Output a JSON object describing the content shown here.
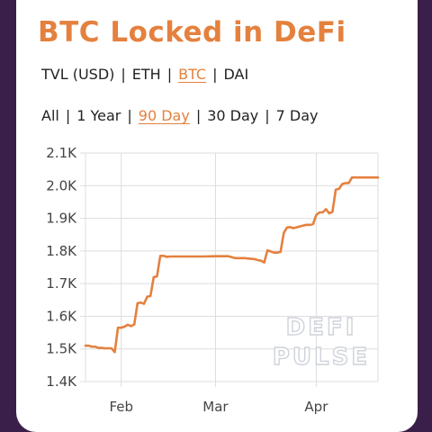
{
  "title": "BTC Locked in DeFi",
  "units": {
    "options": [
      "TVL (USD)",
      "ETH",
      "BTC",
      "DAI"
    ],
    "active": "BTC"
  },
  "ranges": {
    "options": [
      "All",
      "1 Year",
      "90 Day",
      "30 Day",
      "7 Day"
    ],
    "active": "90 Day"
  },
  "watermark": {
    "line1": "DEFI",
    "line2": "PULSE"
  },
  "colors": {
    "accent": "#e4813e",
    "grid": "#dddddd",
    "text": "#222222"
  },
  "chart_data": {
    "type": "line",
    "xlabel": "",
    "ylabel": "",
    "ylim": [
      1400,
      2100
    ],
    "yticks": [
      1400,
      1500,
      1600,
      1700,
      1800,
      1900,
      2000,
      2100
    ],
    "ytick_labels": [
      "1.4K",
      "1.5K",
      "1.6K",
      "1.7K",
      "1.8K",
      "1.9K",
      "2.0K",
      "2.1K"
    ],
    "xlim": [
      "2020-01-21",
      "2020-04-20"
    ],
    "xticks": [
      "2020-02-01",
      "2020-03-01",
      "2020-04-01"
    ],
    "xtick_labels": [
      "Feb",
      "Mar",
      "Apr"
    ],
    "grid": true,
    "series": [
      {
        "x": [
          "2020-01-21",
          "2020-01-22",
          "2020-01-23",
          "2020-01-24",
          "2020-01-25",
          "2020-01-26",
          "2020-01-27",
          "2020-01-28",
          "2020-01-29",
          "2020-01-30",
          "2020-01-31",
          "2020-02-01",
          "2020-02-02",
          "2020-02-03",
          "2020-02-04",
          "2020-02-05",
          "2020-02-06",
          "2020-02-07",
          "2020-02-08",
          "2020-02-09",
          "2020-02-10",
          "2020-02-11",
          "2020-02-12",
          "2020-02-13",
          "2020-02-14",
          "2020-02-15",
          "2020-02-16",
          "2020-02-17",
          "2020-02-18",
          "2020-02-19",
          "2020-02-20",
          "2020-02-21",
          "2020-02-23",
          "2020-02-26",
          "2020-03-01",
          "2020-03-05",
          "2020-03-07",
          "2020-03-10",
          "2020-03-13",
          "2020-03-14",
          "2020-03-15",
          "2020-03-16",
          "2020-03-17",
          "2020-03-19",
          "2020-03-20",
          "2020-03-21",
          "2020-03-22",
          "2020-03-23",
          "2020-03-24",
          "2020-03-25",
          "2020-03-28",
          "2020-03-29",
          "2020-03-30",
          "2020-03-31",
          "2020-04-01",
          "2020-04-02",
          "2020-04-03",
          "2020-04-04",
          "2020-04-05",
          "2020-04-06",
          "2020-04-07",
          "2020-04-08",
          "2020-04-09",
          "2020-04-10",
          "2020-04-11",
          "2020-04-12",
          "2020-04-13",
          "2020-04-14",
          "2020-04-15",
          "2020-04-16",
          "2020-04-17",
          "2020-04-20"
        ],
        "y": [
          1510,
          1510,
          1507,
          1507,
          1503,
          1503,
          1502,
          1502,
          1502,
          1490,
          1565,
          1565,
          1568,
          1574,
          1570,
          1575,
          1640,
          1642,
          1638,
          1660,
          1662,
          1720,
          1722,
          1785,
          1785,
          1782,
          1783,
          1783,
          1783,
          1783,
          1783,
          1783,
          1783,
          1783,
          1784,
          1784,
          1778,
          1778,
          1775,
          1772,
          1770,
          1765,
          1802,
          1795,
          1795,
          1797,
          1855,
          1872,
          1873,
          1870,
          1878,
          1880,
          1880,
          1882,
          1910,
          1918,
          1918,
          1928,
          1915,
          1920,
          1988,
          1990,
          2005,
          2008,
          2008,
          2025,
          2025,
          2025,
          2025,
          2025,
          2025,
          2025
        ]
      }
    ]
  }
}
